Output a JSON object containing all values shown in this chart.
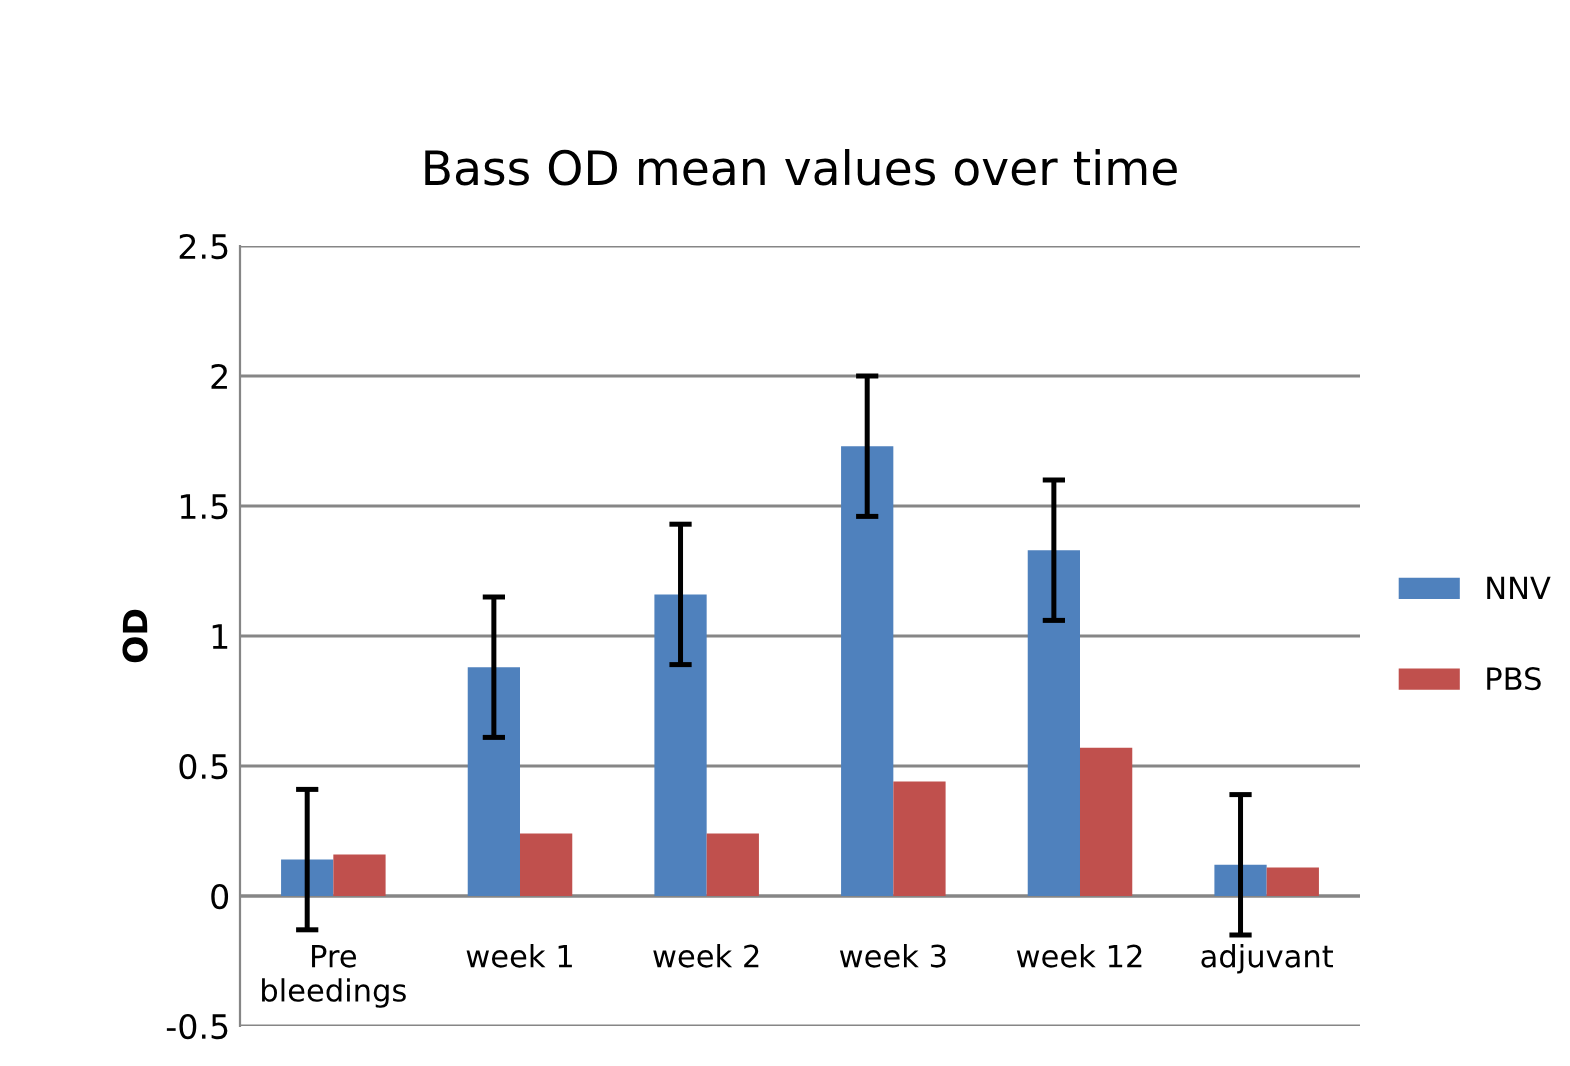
{
  "chart_data": {
    "type": "bar",
    "title": "Bass OD mean values over time",
    "ylabel": "OD",
    "categories": [
      "Pre\nbleedings",
      "week 1",
      "week 2",
      "week 3",
      "week 12",
      "adjuvant"
    ],
    "series": [
      {
        "name": "NNV",
        "color": "#4f81bd",
        "values": [
          0.14,
          0.88,
          1.16,
          1.73,
          1.33,
          0.12
        ],
        "errors": [
          0.27,
          0.27,
          0.27,
          0.27,
          0.27,
          0.27
        ]
      },
      {
        "name": "PBS",
        "color": "#c0504d",
        "values": [
          0.16,
          0.24,
          0.24,
          0.44,
          0.57,
          0.11
        ]
      }
    ],
    "ylim": [
      -0.5,
      2.5
    ],
    "yticks": [
      {
        "value": -0.5,
        "label": "-0.5"
      },
      0,
      0.5,
      1,
      1.5,
      2,
      2.5
    ],
    "grid": "y",
    "legend": "right"
  }
}
